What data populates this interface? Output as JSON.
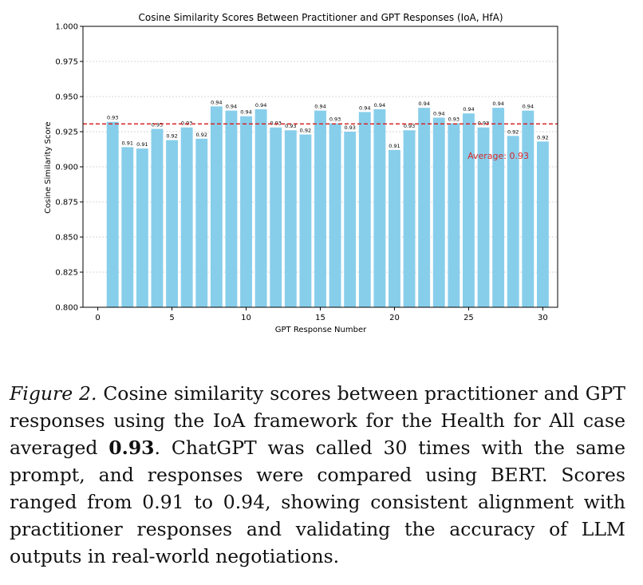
{
  "chart_data": {
    "type": "bar",
    "title": "Cosine Similarity Scores Between Practitioner and GPT Responses (IoA, HfA)",
    "xlabel": "GPT Response Number",
    "ylabel": "Cosine Similarity Score",
    "xlim": [
      -1,
      31
    ],
    "ylim": [
      0.8,
      1.0
    ],
    "xticks": [
      0,
      5,
      10,
      15,
      20,
      25,
      30
    ],
    "yticks": [
      0.8,
      0.825,
      0.85,
      0.875,
      0.9,
      0.925,
      0.95,
      0.975,
      1.0
    ],
    "ytick_labels": [
      "0.800",
      "0.825",
      "0.850",
      "0.875",
      "0.900",
      "0.925",
      "0.950",
      "0.975",
      "1.000"
    ],
    "x": [
      1,
      2,
      3,
      4,
      5,
      6,
      7,
      8,
      9,
      10,
      11,
      12,
      13,
      14,
      15,
      16,
      17,
      18,
      19,
      20,
      21,
      22,
      23,
      24,
      25,
      26,
      27,
      28,
      29,
      30
    ],
    "values": [
      0.932,
      0.914,
      0.913,
      0.927,
      0.919,
      0.928,
      0.92,
      0.943,
      0.94,
      0.936,
      0.941,
      0.928,
      0.926,
      0.923,
      0.94,
      0.931,
      0.925,
      0.939,
      0.941,
      0.912,
      0.926,
      0.942,
      0.935,
      0.931,
      0.938,
      0.928,
      0.942,
      0.922,
      0.94,
      0.918
    ],
    "bar_labels": [
      "0.93",
      "0.91",
      "0.91",
      "0.93",
      "0.92",
      "0.93",
      "0.92",
      "0.94",
      "0.94",
      "0.94",
      "0.94",
      "0.93",
      "0.93",
      "0.92",
      "0.94",
      "0.93",
      "0.93",
      "0.94",
      "0.94",
      "0.91",
      "0.93",
      "0.94",
      "0.94",
      "0.93",
      "0.94",
      "0.93",
      "0.94",
      "0.92",
      "0.94",
      "0.92"
    ],
    "average": 0.93,
    "average_label": "Average: 0.93",
    "bar_color": "#87ceeb",
    "average_color": "#d62728"
  },
  "caption": {
    "label": "Figure 2.",
    "text_before": " Cosine similarity scores between practitioner and GPT responses using the IoA framework for the Health for All case averaged ",
    "bold": "0.93",
    "text_after": ". ChatGPT was called 30 times with the same prompt, and responses were compared using BERT. Scores ranged from 0.91 to 0.94, showing consistent alignment with practitioner responses and validating the accuracy of LLM outputs in real-world negotiations."
  }
}
